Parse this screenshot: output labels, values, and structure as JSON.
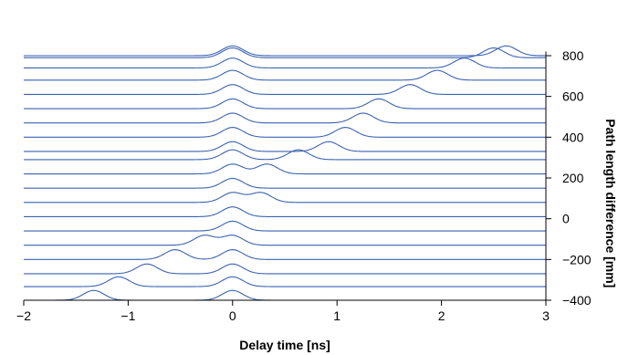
{
  "chart_data": {
    "type": "line",
    "title": "",
    "xlabel": "Delay time [ns]",
    "ylabel": "Path length difference [mm]",
    "xlim": [
      -2,
      3
    ],
    "ylim": [
      -400,
      820
    ],
    "x_ticks": [
      -2,
      -1,
      0,
      1,
      2,
      3
    ],
    "y_ticks": [
      -400,
      -200,
      0,
      200,
      400,
      600,
      800
    ],
    "y_axis_position": "right",
    "grid": false,
    "legend": "none",
    "line_color": "#3a62b0",
    "pulse_width_ns": 0.1,
    "pulse_height_mm": 48,
    "series": [
      {
        "baseline_mm": -400,
        "peaks_ns": [
          -1.33,
          0.0
        ]
      },
      {
        "baseline_mm": -333,
        "peaks_ns": [
          -1.09,
          0.0
        ]
      },
      {
        "baseline_mm": -270,
        "peaks_ns": [
          -0.82,
          0.0
        ]
      },
      {
        "baseline_mm": -200,
        "peaks_ns": [
          -0.55,
          0.0
        ]
      },
      {
        "baseline_mm": -130,
        "peaks_ns": [
          -0.27,
          0.0
        ]
      },
      {
        "baseline_mm": -60,
        "peaks_ns": [
          0.0
        ]
      },
      {
        "baseline_mm": 10,
        "peaks_ns": [
          0.0
        ]
      },
      {
        "baseline_mm": 80,
        "peaks_ns": [
          0.0,
          0.27
        ]
      },
      {
        "baseline_mm": 150,
        "peaks_ns": [
          0.0
        ]
      },
      {
        "baseline_mm": 220,
        "peaks_ns": [
          0.0,
          0.33
        ]
      },
      {
        "baseline_mm": 290,
        "peaks_ns": [
          0.0,
          0.63
        ]
      },
      {
        "baseline_mm": 330,
        "peaks_ns": [
          0.0,
          0.92
        ]
      },
      {
        "baseline_mm": 400,
        "peaks_ns": [
          0.0,
          1.08
        ]
      },
      {
        "baseline_mm": 470,
        "peaks_ns": [
          0.0,
          1.25
        ]
      },
      {
        "baseline_mm": 540,
        "peaks_ns": [
          0.0,
          1.4
        ]
      },
      {
        "baseline_mm": 610,
        "peaks_ns": [
          0.0,
          1.7
        ]
      },
      {
        "baseline_mm": 680,
        "peaks_ns": [
          0.0,
          1.96
        ]
      },
      {
        "baseline_mm": 740,
        "peaks_ns": [
          0.0,
          2.22
        ]
      },
      {
        "baseline_mm": 790,
        "peaks_ns": [
          0.0,
          2.5
        ]
      },
      {
        "baseline_mm": 800,
        "peaks_ns": [
          0.0,
          2.62
        ]
      }
    ]
  }
}
